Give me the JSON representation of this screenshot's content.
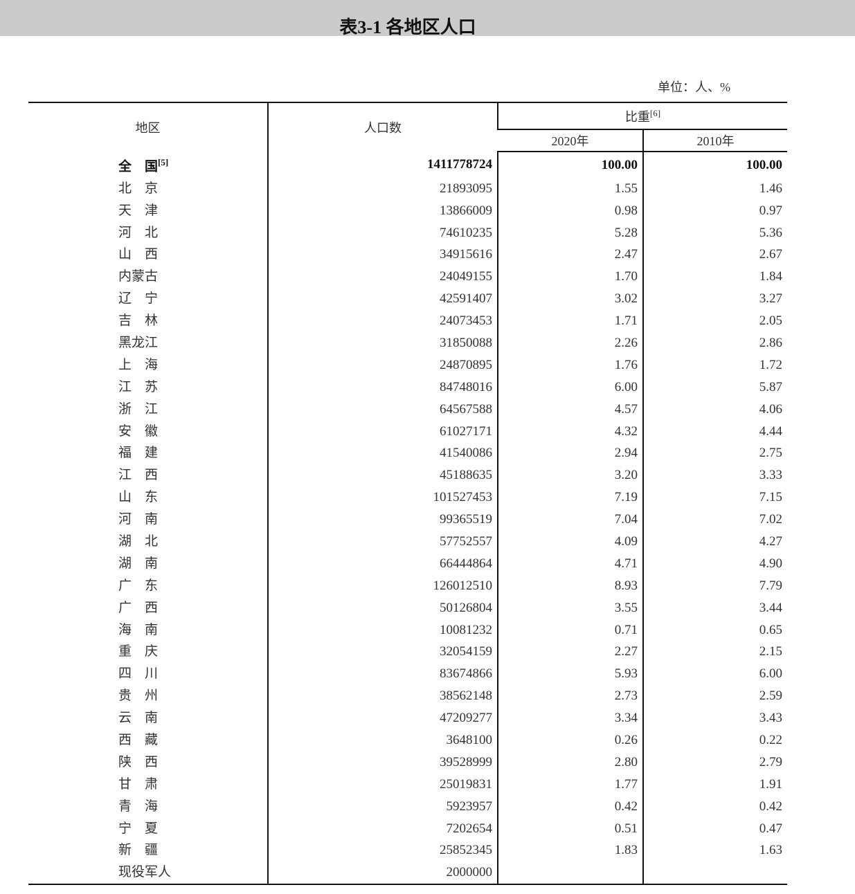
{
  "title": "表3-1 各地区人口",
  "unit": "单位：人、%",
  "header": {
    "region": "地区",
    "population": "人口数",
    "share": "比重",
    "share_note": "[6]",
    "y2020": "2020年",
    "y2010": "2010年"
  },
  "rows": [
    {
      "region": "全　国",
      "note": "[5]",
      "pop": "1411778724",
      "p2020": "100.00",
      "p2010": "100.00"
    },
    {
      "region": "北　京",
      "pop": "21893095",
      "p2020": "1.55",
      "p2010": "1.46"
    },
    {
      "region": "天　津",
      "pop": "13866009",
      "p2020": "0.98",
      "p2010": "0.97"
    },
    {
      "region": "河　北",
      "pop": "74610235",
      "p2020": "5.28",
      "p2010": "5.36"
    },
    {
      "region": "山　西",
      "pop": "34915616",
      "p2020": "2.47",
      "p2010": "2.67"
    },
    {
      "region": "内蒙古",
      "pop": "24049155",
      "p2020": "1.70",
      "p2010": "1.84"
    },
    {
      "region": "辽　宁",
      "pop": "42591407",
      "p2020": "3.02",
      "p2010": "3.27"
    },
    {
      "region": "吉　林",
      "pop": "24073453",
      "p2020": "1.71",
      "p2010": "2.05"
    },
    {
      "region": "黑龙江",
      "pop": "31850088",
      "p2020": "2.26",
      "p2010": "2.86"
    },
    {
      "region": "上　海",
      "pop": "24870895",
      "p2020": "1.76",
      "p2010": "1.72"
    },
    {
      "region": "江　苏",
      "pop": "84748016",
      "p2020": "6.00",
      "p2010": "5.87"
    },
    {
      "region": "浙　江",
      "pop": "64567588",
      "p2020": "4.57",
      "p2010": "4.06"
    },
    {
      "region": "安　徽",
      "pop": "61027171",
      "p2020": "4.32",
      "p2010": "4.44"
    },
    {
      "region": "福　建",
      "pop": "41540086",
      "p2020": "2.94",
      "p2010": "2.75"
    },
    {
      "region": "江　西",
      "pop": "45188635",
      "p2020": "3.20",
      "p2010": "3.33"
    },
    {
      "region": "山　东",
      "pop": "101527453",
      "p2020": "7.19",
      "p2010": "7.15"
    },
    {
      "region": "河　南",
      "pop": "99365519",
      "p2020": "7.04",
      "p2010": "7.02"
    },
    {
      "region": "湖　北",
      "pop": "57752557",
      "p2020": "4.09",
      "p2010": "4.27"
    },
    {
      "region": "湖　南",
      "pop": "66444864",
      "p2020": "4.71",
      "p2010": "4.90"
    },
    {
      "region": "广　东",
      "pop": "126012510",
      "p2020": "8.93",
      "p2010": "7.79"
    },
    {
      "region": "广　西",
      "pop": "50126804",
      "p2020": "3.55",
      "p2010": "3.44"
    },
    {
      "region": "海　南",
      "pop": "10081232",
      "p2020": "0.71",
      "p2010": "0.65"
    },
    {
      "region": "重　庆",
      "pop": "32054159",
      "p2020": "2.27",
      "p2010": "2.15"
    },
    {
      "region": "四　川",
      "pop": "83674866",
      "p2020": "5.93",
      "p2010": "6.00"
    },
    {
      "region": "贵　州",
      "pop": "38562148",
      "p2020": "2.73",
      "p2010": "2.59"
    },
    {
      "region": "云　南",
      "pop": "47209277",
      "p2020": "3.34",
      "p2010": "3.43"
    },
    {
      "region": "西　藏",
      "pop": "3648100",
      "p2020": "0.26",
      "p2010": "0.22"
    },
    {
      "region": "陕　西",
      "pop": "39528999",
      "p2020": "2.80",
      "p2010": "2.79"
    },
    {
      "region": "甘　肃",
      "pop": "25019831",
      "p2020": "1.77",
      "p2010": "1.91"
    },
    {
      "region": "青　海",
      "pop": "5923957",
      "p2020": "0.42",
      "p2010": "0.42"
    },
    {
      "region": "宁　夏",
      "pop": "7202654",
      "p2020": "0.51",
      "p2010": "0.47"
    },
    {
      "region": "新　疆",
      "pop": "25852345",
      "p2020": "1.83",
      "p2010": "1.63"
    },
    {
      "region": "现役军人",
      "pop": "2000000",
      "p2020": "",
      "p2010": ""
    }
  ]
}
